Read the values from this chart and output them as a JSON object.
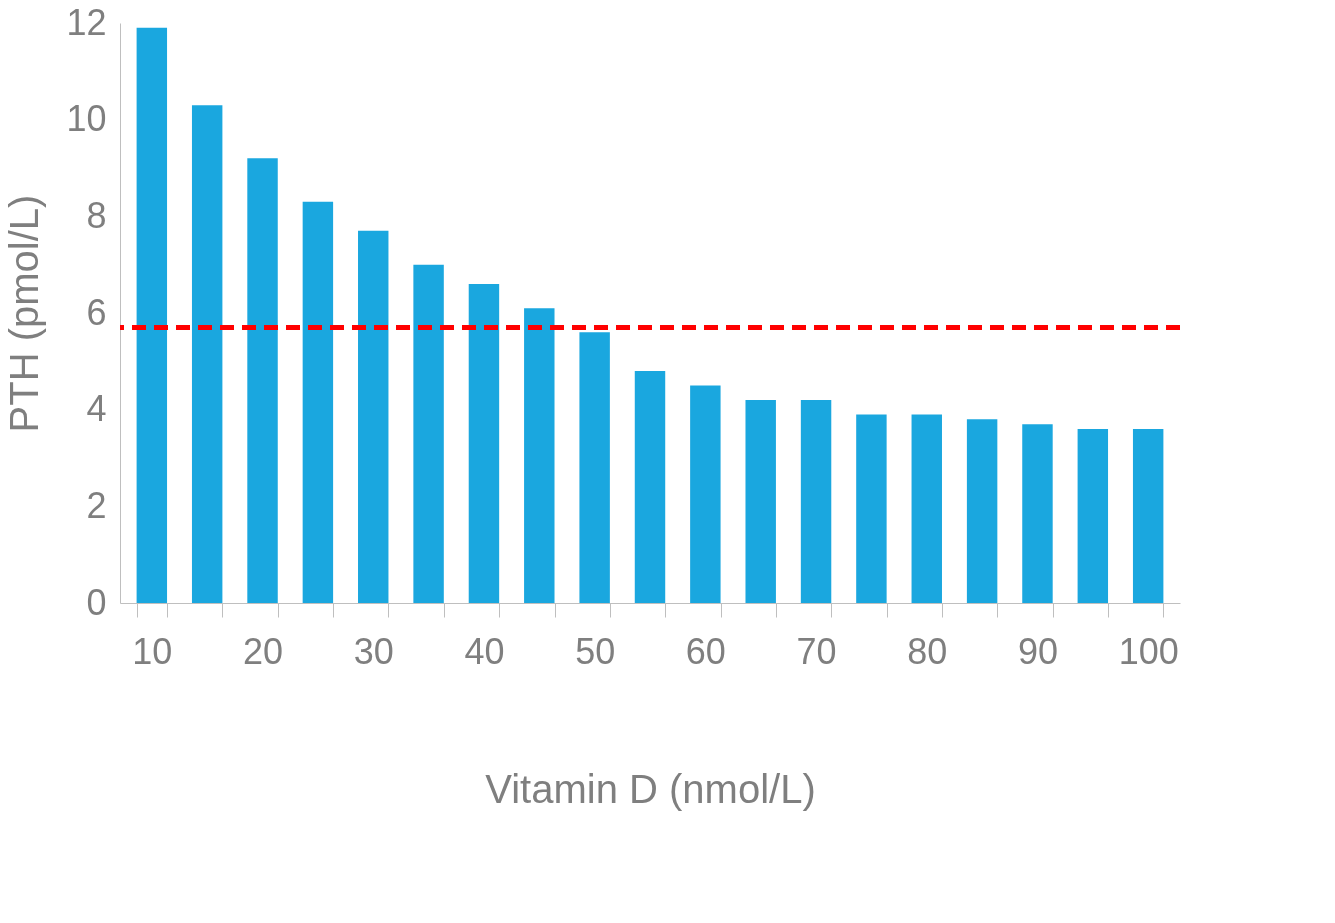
{
  "chart_data": {
    "type": "bar",
    "xlabel": "Vitamin D (nmol/L)",
    "ylabel": "PTH (pmol/L)",
    "categories": [
      "10",
      null,
      "20",
      null,
      "30",
      null,
      "40",
      null,
      "50",
      null,
      "60",
      null,
      "70",
      null,
      "80",
      null,
      "90",
      null,
      "100"
    ],
    "values": [
      11.9,
      10.3,
      9.2,
      8.3,
      7.7,
      7.0,
      6.6,
      6.1,
      5.6,
      4.8,
      4.5,
      4.2,
      4.2,
      3.9,
      3.9,
      3.8,
      3.7,
      3.6,
      3.6
    ],
    "color": "#1aa7df",
    "ylim": [
      0,
      12
    ],
    "yticks": [
      0,
      2,
      4,
      6,
      8,
      10,
      12
    ],
    "grid": false,
    "ref_lines": [
      {
        "axis": "y",
        "value": 5.7,
        "color": "#ff0000",
        "line_style": "dashed"
      }
    ]
  }
}
